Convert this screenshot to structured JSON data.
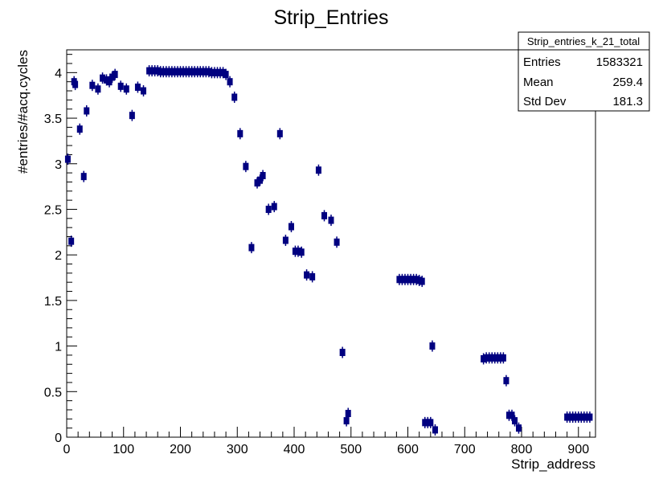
{
  "chart_data": {
    "type": "scatter",
    "title": "Strip_Entries",
    "xlabel": "Strip_address",
    "ylabel": "#entries/#acq.cycles",
    "xlim": [
      0,
      930
    ],
    "ylim": [
      0,
      4.25
    ],
    "xticks": [
      0,
      100,
      200,
      300,
      400,
      500,
      600,
      700,
      800,
      900
    ],
    "xtick_labels": [
      "0",
      "100",
      "200",
      "300",
      "400",
      "500",
      "600",
      "700",
      "800",
      "900"
    ],
    "yticks": [
      0,
      0.5,
      1,
      1.5,
      2,
      2.5,
      3,
      3.5,
      4
    ],
    "ytick_labels": [
      "0",
      "0.5",
      "1",
      "1.5",
      "2",
      "2.5",
      "3",
      "3.5",
      "4"
    ],
    "grid": false,
    "marker_color": "#000080",
    "stats_box": {
      "name": "Strip_entries_k_21_total",
      "rows": [
        {
          "label": "Entries",
          "value": "1583321"
        },
        {
          "label": "Mean",
          "value": "259.4"
        },
        {
          "label": "Std Dev",
          "value": "181.3"
        }
      ]
    },
    "series": [
      {
        "points": [
          [
            2,
            3.05
          ],
          [
            8,
            2.15
          ],
          [
            13,
            3.9
          ],
          [
            15,
            3.87
          ],
          [
            23,
            3.38
          ],
          [
            30,
            2.86
          ],
          [
            35,
            3.58
          ],
          [
            45,
            3.86
          ],
          [
            55,
            3.82
          ],
          [
            63,
            3.94
          ],
          [
            70,
            3.92
          ],
          [
            75,
            3.9
          ],
          [
            80,
            3.95
          ],
          [
            85,
            3.98
          ],
          [
            95,
            3.85
          ],
          [
            105,
            3.82
          ],
          [
            115,
            3.53
          ],
          [
            125,
            3.84
          ],
          [
            135,
            3.8
          ],
          [
            145,
            4.02
          ],
          [
            150,
            4.02
          ],
          [
            155,
            4.02
          ],
          [
            160,
            4.02
          ],
          [
            165,
            4.01
          ],
          [
            170,
            4.01
          ],
          [
            175,
            4.01
          ],
          [
            180,
            4.01
          ],
          [
            185,
            4.01
          ],
          [
            190,
            4.01
          ],
          [
            195,
            4.01
          ],
          [
            200,
            4.01
          ],
          [
            205,
            4.01
          ],
          [
            210,
            4.01
          ],
          [
            215,
            4.01
          ],
          [
            220,
            4.01
          ],
          [
            225,
            4.01
          ],
          [
            230,
            4.01
          ],
          [
            235,
            4.01
          ],
          [
            240,
            4.01
          ],
          [
            245,
            4.01
          ],
          [
            250,
            4.01
          ],
          [
            255,
            4.0
          ],
          [
            260,
            4.0
          ],
          [
            265,
            4.0
          ],
          [
            270,
            4.0
          ],
          [
            275,
            4.0
          ],
          [
            280,
            3.98
          ],
          [
            287,
            3.9
          ],
          [
            295,
            3.73
          ],
          [
            305,
            3.33
          ],
          [
            315,
            2.97
          ],
          [
            325,
            2.08
          ],
          [
            335,
            2.79
          ],
          [
            340,
            2.82
          ],
          [
            345,
            2.87
          ],
          [
            355,
            2.5
          ],
          [
            365,
            2.53
          ],
          [
            375,
            3.33
          ],
          [
            385,
            2.16
          ],
          [
            395,
            2.31
          ],
          [
            402,
            2.04
          ],
          [
            407,
            2.04
          ],
          [
            413,
            2.03
          ],
          [
            422,
            1.78
          ],
          [
            432,
            1.76
          ],
          [
            443,
            2.93
          ],
          [
            453,
            2.43
          ],
          [
            465,
            2.38
          ],
          [
            475,
            2.14
          ],
          [
            485,
            0.93
          ],
          [
            495,
            0.26
          ],
          [
            492,
            0.18
          ],
          [
            585,
            1.73
          ],
          [
            590,
            1.73
          ],
          [
            595,
            1.73
          ],
          [
            600,
            1.73
          ],
          [
            605,
            1.73
          ],
          [
            610,
            1.73
          ],
          [
            615,
            1.73
          ],
          [
            620,
            1.72
          ],
          [
            625,
            1.71
          ],
          [
            630,
            0.16
          ],
          [
            635,
            0.16
          ],
          [
            640,
            0.16
          ],
          [
            643,
            1.0
          ],
          [
            648,
            0.08
          ],
          [
            733,
            0.86
          ],
          [
            738,
            0.87
          ],
          [
            743,
            0.87
          ],
          [
            748,
            0.87
          ],
          [
            753,
            0.87
          ],
          [
            758,
            0.87
          ],
          [
            763,
            0.87
          ],
          [
            768,
            0.87
          ],
          [
            773,
            0.62
          ],
          [
            778,
            0.24
          ],
          [
            783,
            0.24
          ],
          [
            788,
            0.18
          ],
          [
            795,
            0.1
          ],
          [
            880,
            0.22
          ],
          [
            885,
            0.22
          ],
          [
            890,
            0.22
          ],
          [
            895,
            0.22
          ],
          [
            900,
            0.22
          ],
          [
            905,
            0.22
          ],
          [
            910,
            0.22
          ],
          [
            915,
            0.22
          ],
          [
            920,
            0.22
          ]
        ]
      }
    ]
  }
}
